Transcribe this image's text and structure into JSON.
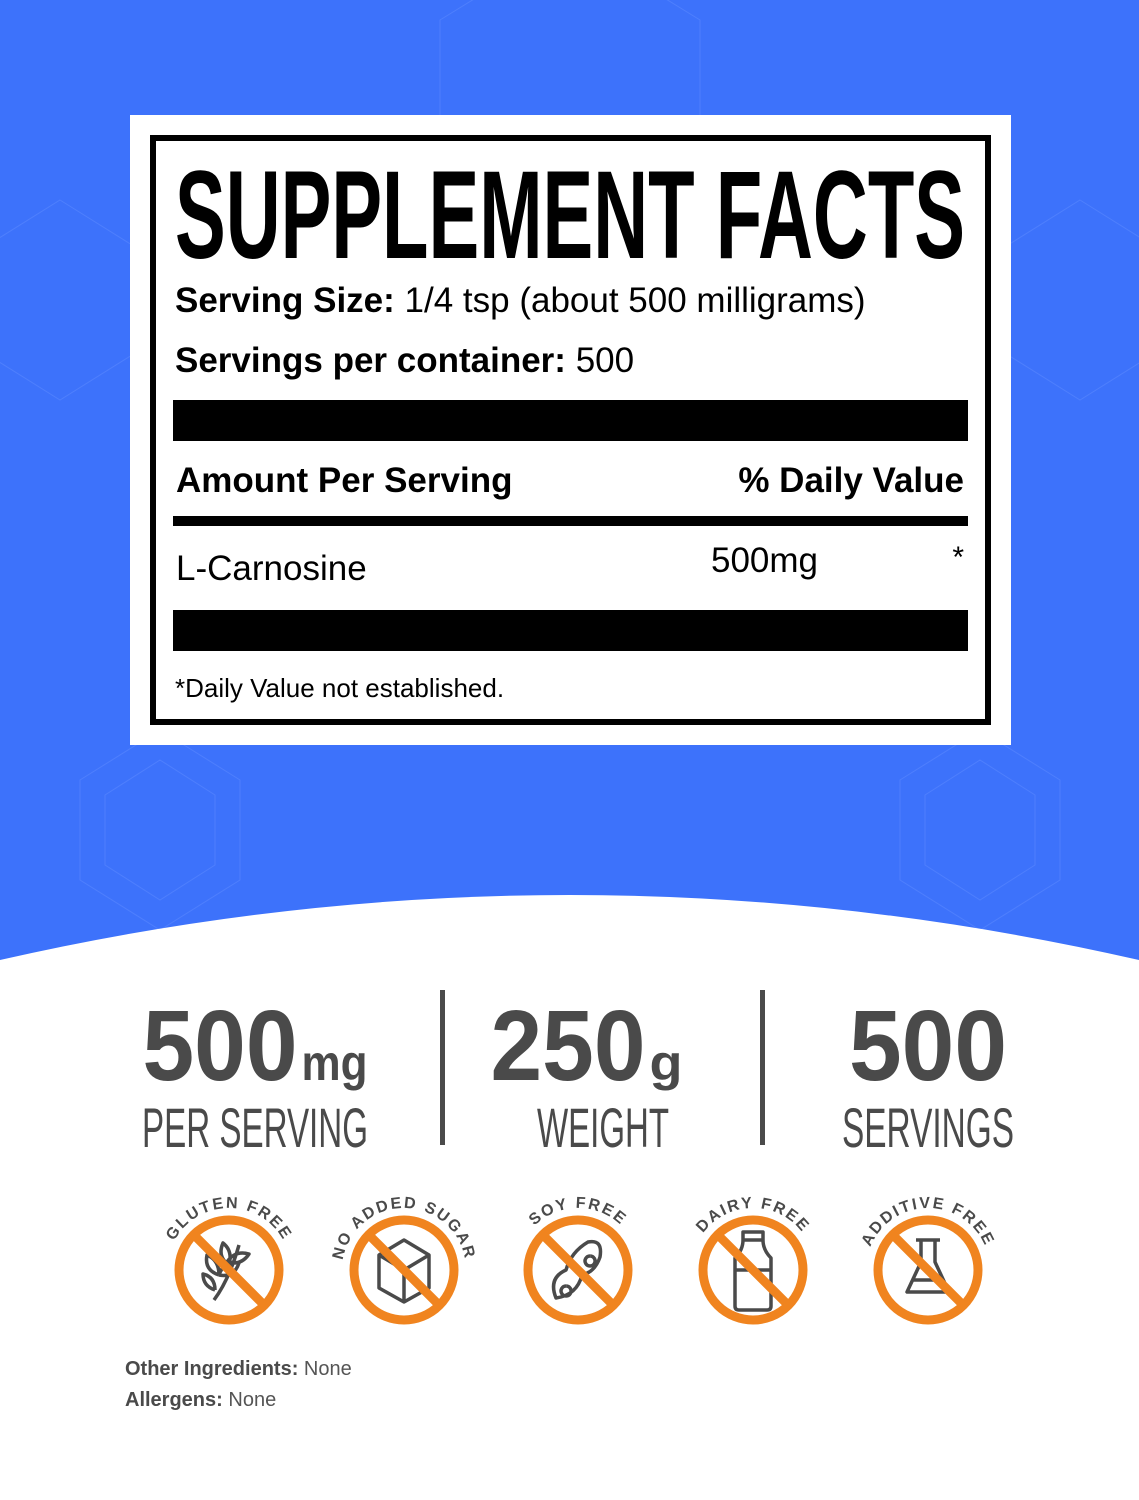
{
  "colors": {
    "background": "#3d72fb",
    "badge": "#f0841f",
    "stat_text": "#4a4a4a"
  },
  "facts": {
    "title": "SUPPLEMENT FACTS",
    "serving_size_label": "Serving Size:",
    "serving_size_value": "1/4 tsp (about 500 milligrams)",
    "servings_label": "Servings per container:",
    "servings_value": "500",
    "amount_header": "Amount Per Serving",
    "dv_header": "% Daily Value",
    "ingredient": "L-Carnosine",
    "ingredient_amount": "500mg",
    "ingredient_dv": "*",
    "footnote": "*Daily Value not established."
  },
  "stats": [
    {
      "value": "500",
      "unit": "mg",
      "label": "PER SERVING"
    },
    {
      "value": "250",
      "unit": "g",
      "label": "WEIGHT"
    },
    {
      "value": "500",
      "unit": "",
      "label": "SERVINGS"
    }
  ],
  "badges": [
    {
      "label": "GLUTEN FREE",
      "icon": "wheat-icon"
    },
    {
      "label": "NO ADDED SUGAR",
      "icon": "sugar-cube-icon"
    },
    {
      "label": "SOY FREE",
      "icon": "soybean-icon"
    },
    {
      "label": "DAIRY FREE",
      "icon": "milk-bottle-icon"
    },
    {
      "label": "ADDITIVE FREE",
      "icon": "flask-icon"
    }
  ],
  "footer": {
    "other_label": "Other Ingredients:",
    "other_value": "None",
    "allergens_label": "Allergens:",
    "allergens_value": "None"
  }
}
